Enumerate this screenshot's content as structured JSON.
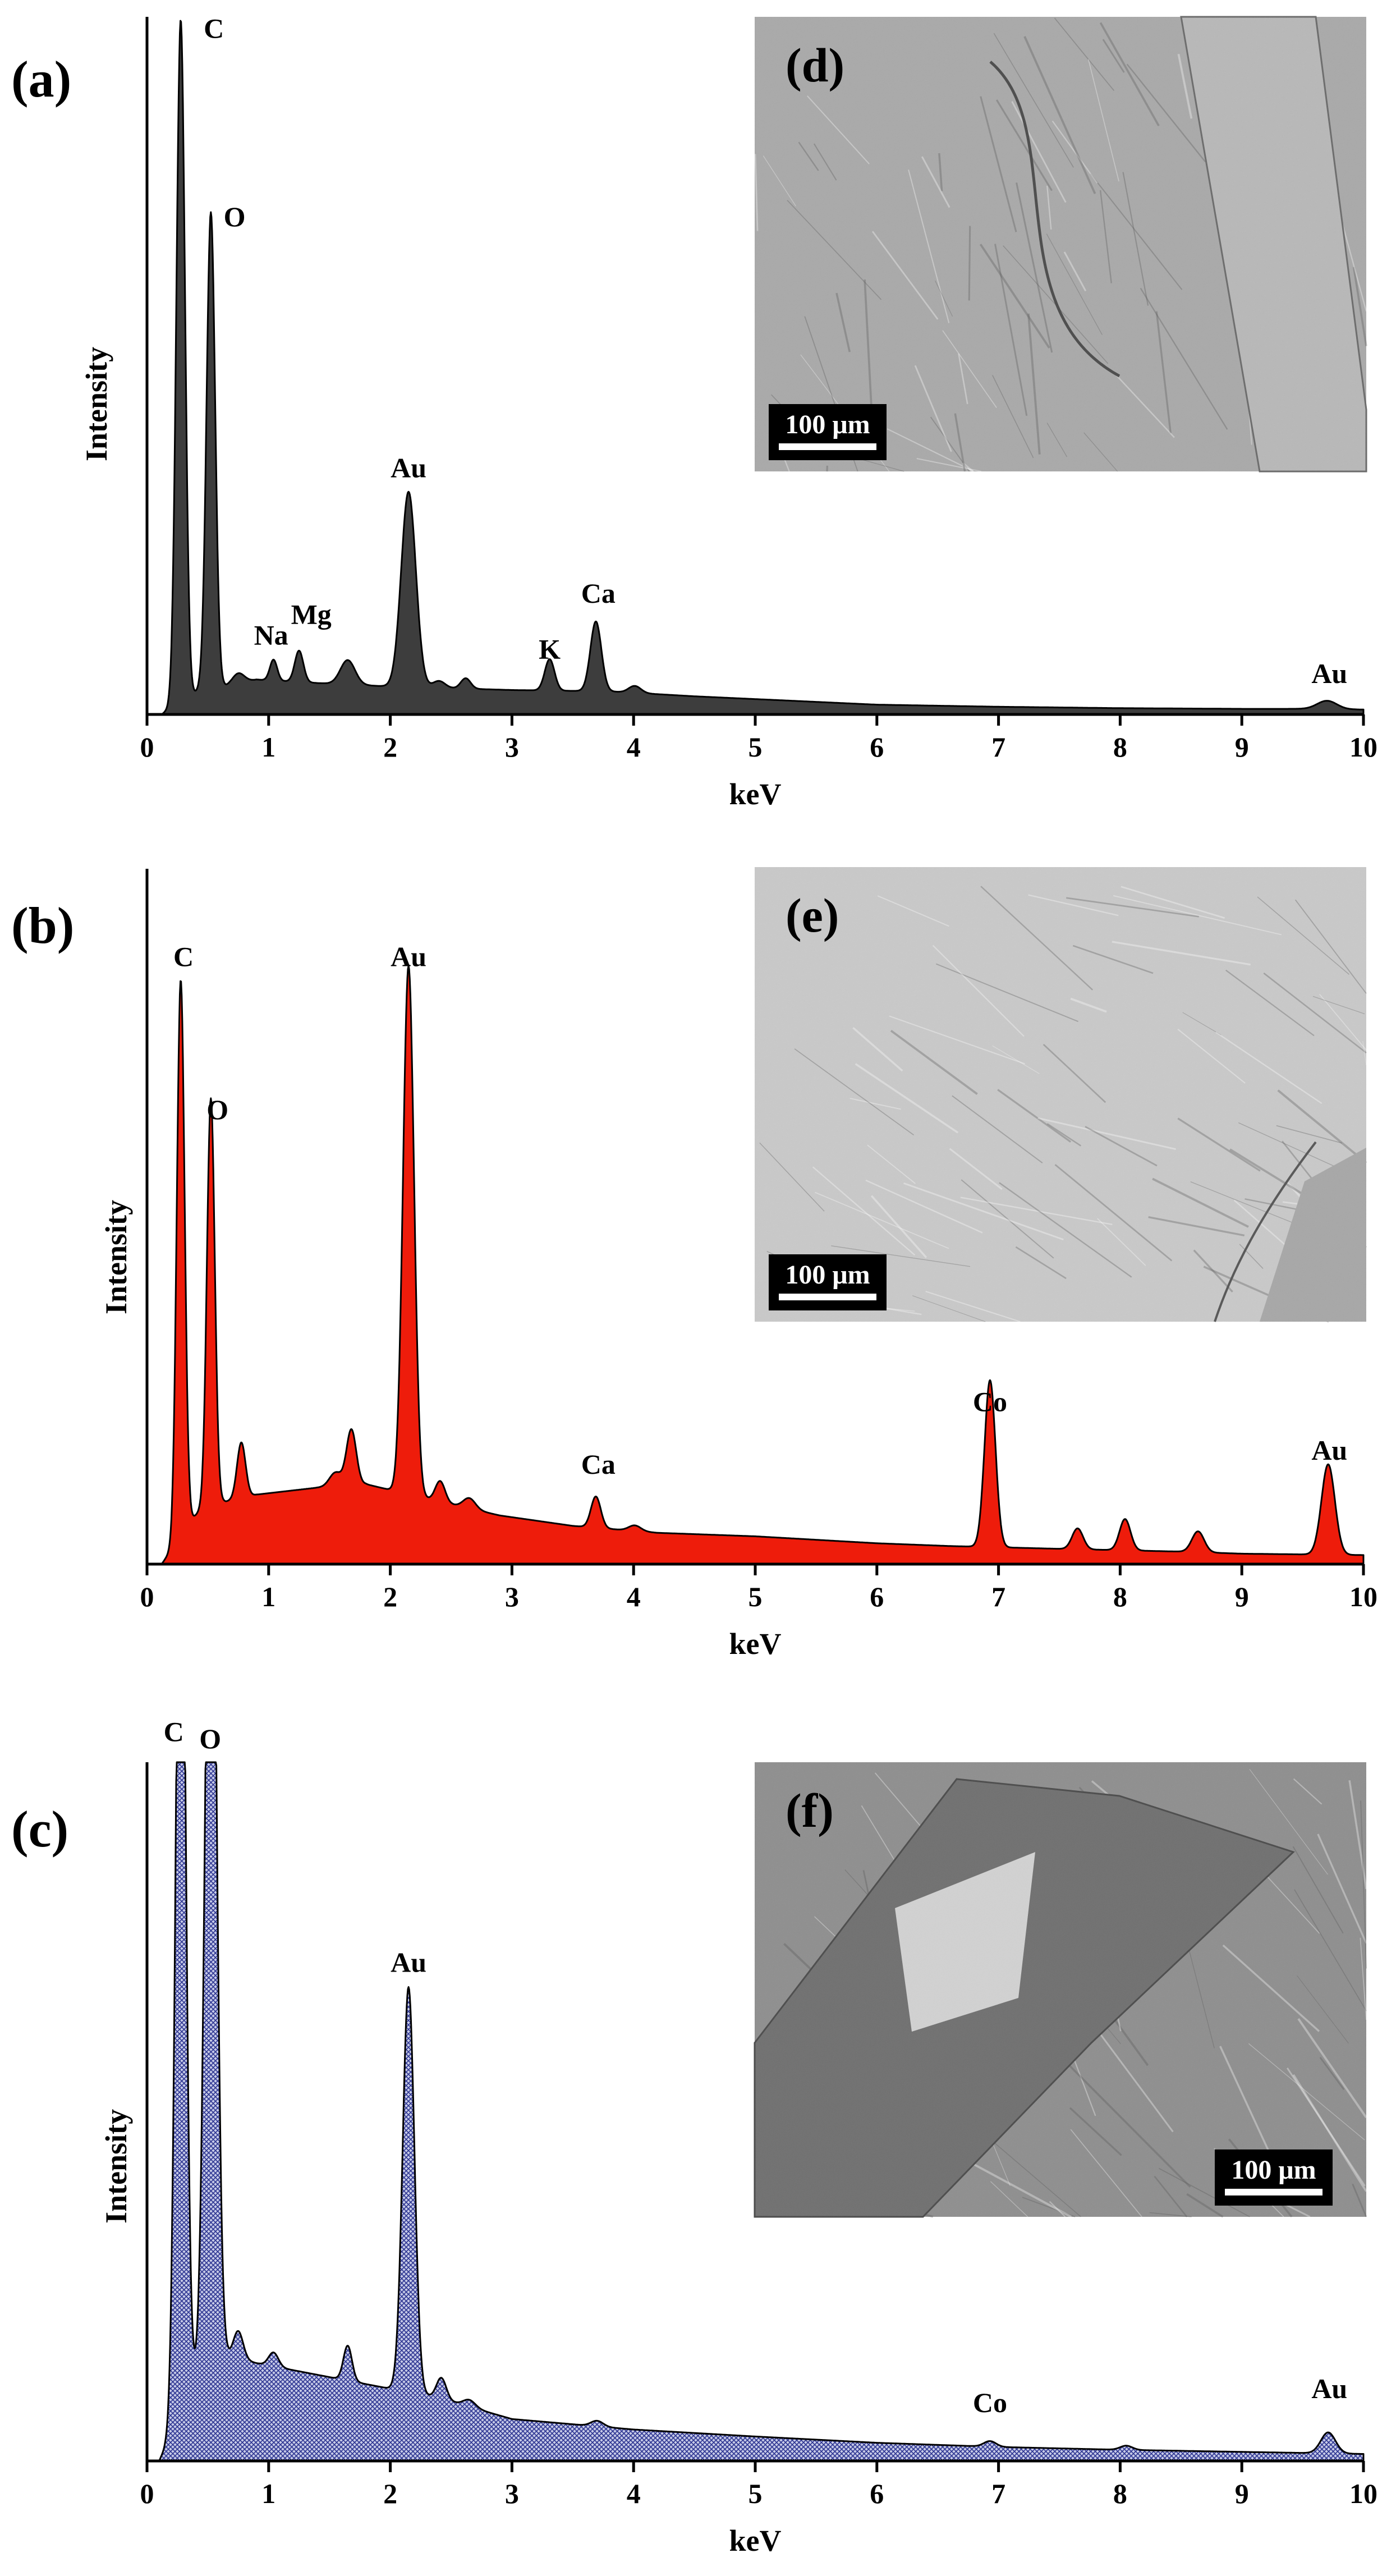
{
  "chart_data": [
    {
      "panel": "(a)",
      "type": "area",
      "color": "#3d3d3d",
      "fill": "solid",
      "xlabel": "keV",
      "ylabel": "Intensity",
      "xlim": [
        0,
        10
      ],
      "ylim": [
        0,
        100
      ],
      "xticks": [
        0,
        1,
        2,
        3,
        4,
        5,
        6,
        7,
        8,
        9,
        10
      ],
      "baseline": [
        [
          0.12,
          0
        ],
        [
          0.2,
          1
        ],
        [
          0.35,
          2.2
        ],
        [
          0.45,
          4
        ],
        [
          0.65,
          4
        ],
        [
          0.9,
          5
        ],
        [
          1.4,
          4.5
        ],
        [
          2,
          4
        ],
        [
          3,
          3.5
        ],
        [
          3.8,
          3.3
        ],
        [
          4.5,
          2.6
        ],
        [
          6,
          1.4
        ],
        [
          7,
          1.1
        ],
        [
          8,
          0.9
        ],
        [
          9,
          0.8
        ],
        [
          9.5,
          0.8
        ],
        [
          10,
          0.7
        ]
      ],
      "peaks": [
        {
          "x": 0.277,
          "h": 98,
          "w": 0.035
        },
        {
          "x": 0.525,
          "h": 68,
          "w": 0.035
        },
        {
          "x": 0.75,
          "h": 1.5,
          "w": 0.05
        },
        {
          "x": 1.04,
          "h": 3,
          "w": 0.03
        },
        {
          "x": 1.25,
          "h": 4.5,
          "w": 0.035
        },
        {
          "x": 1.65,
          "h": 3.5,
          "w": 0.06
        },
        {
          "x": 2.15,
          "h": 28,
          "w": 0.06
        },
        {
          "x": 2.4,
          "h": 1,
          "w": 0.05
        },
        {
          "x": 2.62,
          "h": 1.5,
          "w": 0.04
        },
        {
          "x": 3.31,
          "h": 4.5,
          "w": 0.04
        },
        {
          "x": 3.69,
          "h": 10,
          "w": 0.045
        },
        {
          "x": 4.01,
          "h": 1,
          "w": 0.05
        },
        {
          "x": 9.7,
          "h": 1.2,
          "w": 0.08
        }
      ],
      "annotations": [
        {
          "text": "C",
          "x": 0.55,
          "y": 97
        },
        {
          "text": "O",
          "x": 0.72,
          "y": 70
        },
        {
          "text": "Na",
          "x": 1.02,
          "y": 10
        },
        {
          "text": "Mg",
          "x": 1.35,
          "y": 13
        },
        {
          "text": "Au",
          "x": 2.15,
          "y": 34
        },
        {
          "text": "K",
          "x": 3.31,
          "y": 8
        },
        {
          "text": "Ca",
          "x": 3.71,
          "y": 16
        },
        {
          "text": "Au",
          "x": 9.72,
          "y": 4.5
        }
      ],
      "inset": {
        "label": "(d)",
        "scale": "100 μm",
        "scale_position": "bottom-left"
      }
    },
    {
      "panel": "(b)",
      "type": "area",
      "color": "#ee1c0b",
      "fill": "solid",
      "xlabel": "keV",
      "ylabel": "Intensity",
      "xlim": [
        0,
        10
      ],
      "ylim": [
        0,
        100
      ],
      "xticks": [
        0,
        1,
        2,
        3,
        4,
        5,
        6,
        7,
        8,
        9,
        10
      ],
      "baseline": [
        [
          0.12,
          0
        ],
        [
          0.2,
          2
        ],
        [
          0.35,
          6
        ],
        [
          0.5,
          9
        ],
        [
          0.65,
          9
        ],
        [
          0.9,
          10
        ],
        [
          1.4,
          11
        ],
        [
          1.8,
          11.5
        ],
        [
          2.4,
          9
        ],
        [
          2.9,
          7
        ],
        [
          3.5,
          5.5
        ],
        [
          4.2,
          4.5
        ],
        [
          5,
          4
        ],
        [
          6,
          3
        ],
        [
          6.6,
          2.6
        ],
        [
          7.5,
          2.2
        ],
        [
          8.5,
          1.8
        ],
        [
          9,
          1.5
        ],
        [
          10,
          1.3
        ]
      ],
      "peaks": [
        {
          "x": 0.277,
          "h": 80,
          "w": 0.032
        },
        {
          "x": 0.525,
          "h": 58,
          "w": 0.032
        },
        {
          "x": 0.775,
          "h": 8,
          "w": 0.035
        },
        {
          "x": 1.55,
          "h": 2,
          "w": 0.05
        },
        {
          "x": 1.68,
          "h": 8,
          "w": 0.04
        },
        {
          "x": 2.15,
          "h": 76,
          "w": 0.045
        },
        {
          "x": 2.41,
          "h": 3,
          "w": 0.04
        },
        {
          "x": 2.65,
          "h": 1.5,
          "w": 0.05
        },
        {
          "x": 3.69,
          "h": 4.5,
          "w": 0.04
        },
        {
          "x": 4.01,
          "h": 0.8,
          "w": 0.05
        },
        {
          "x": 6.93,
          "h": 24,
          "w": 0.045
        },
        {
          "x": 7.65,
          "h": 3,
          "w": 0.045
        },
        {
          "x": 8.04,
          "h": 4.5,
          "w": 0.045
        },
        {
          "x": 8.64,
          "h": 3,
          "w": 0.05
        },
        {
          "x": 9.71,
          "h": 13,
          "w": 0.055
        }
      ],
      "annotations": [
        {
          "text": "C",
          "x": 0.3,
          "y": 86
        },
        {
          "text": "O",
          "x": 0.58,
          "y": 64
        },
        {
          "text": "Au",
          "x": 2.15,
          "y": 86
        },
        {
          "text": "Ca",
          "x": 3.71,
          "y": 13
        },
        {
          "text": "Co",
          "x": 6.93,
          "y": 22
        },
        {
          "text": "Au",
          "x": 9.72,
          "y": 15
        }
      ],
      "inset": {
        "label": "(e)",
        "scale": "100 μm",
        "scale_position": "bottom-left"
      }
    },
    {
      "panel": "(c)",
      "type": "area",
      "color": "#2d3592",
      "fill": "crosshatch",
      "xlabel": "keV",
      "ylabel": "Intensity",
      "xlim": [
        0,
        10
      ],
      "ylim": [
        0,
        100
      ],
      "xticks": [
        0,
        1,
        2,
        3,
        4,
        5,
        6,
        7,
        8,
        9,
        10
      ],
      "baseline": [
        [
          0.1,
          0
        ],
        [
          0.18,
          3
        ],
        [
          0.3,
          9
        ],
        [
          0.45,
          14
        ],
        [
          0.65,
          15
        ],
        [
          0.9,
          14
        ],
        [
          1.5,
          12
        ],
        [
          2.4,
          9
        ],
        [
          3,
          6
        ],
        [
          4,
          4.5
        ],
        [
          5,
          3.5
        ],
        [
          6,
          2.6
        ],
        [
          7,
          2
        ],
        [
          8,
          1.6
        ],
        [
          9,
          1.3
        ],
        [
          10,
          1
        ]
      ],
      "peaks": [
        {
          "x": 0.277,
          "h": 140,
          "w": 0.04
        },
        {
          "x": 0.525,
          "h": 140,
          "w": 0.045
        },
        {
          "x": 0.75,
          "h": 4,
          "w": 0.04
        },
        {
          "x": 1.04,
          "h": 2,
          "w": 0.04
        },
        {
          "x": 1.65,
          "h": 5,
          "w": 0.035
        },
        {
          "x": 2.15,
          "h": 58,
          "w": 0.048
        },
        {
          "x": 2.42,
          "h": 3,
          "w": 0.04
        },
        {
          "x": 2.65,
          "h": 1,
          "w": 0.05
        },
        {
          "x": 3.7,
          "h": 0.8,
          "w": 0.05
        },
        {
          "x": 6.93,
          "h": 0.8,
          "w": 0.05
        },
        {
          "x": 8.05,
          "h": 0.6,
          "w": 0.05
        },
        {
          "x": 9.71,
          "h": 3,
          "w": 0.06
        }
      ],
      "annotations": [
        {
          "text": "C",
          "x": 0.22,
          "y": 103
        },
        {
          "text": "O",
          "x": 0.52,
          "y": 102
        },
        {
          "text": "Au",
          "x": 2.15,
          "y": 70
        },
        {
          "text": "Co",
          "x": 6.93,
          "y": 7
        },
        {
          "text": "Au",
          "x": 9.72,
          "y": 9
        }
      ],
      "inset": {
        "label": "(f)",
        "scale": "100 μm",
        "scale_position": "bottom-right"
      }
    }
  ]
}
